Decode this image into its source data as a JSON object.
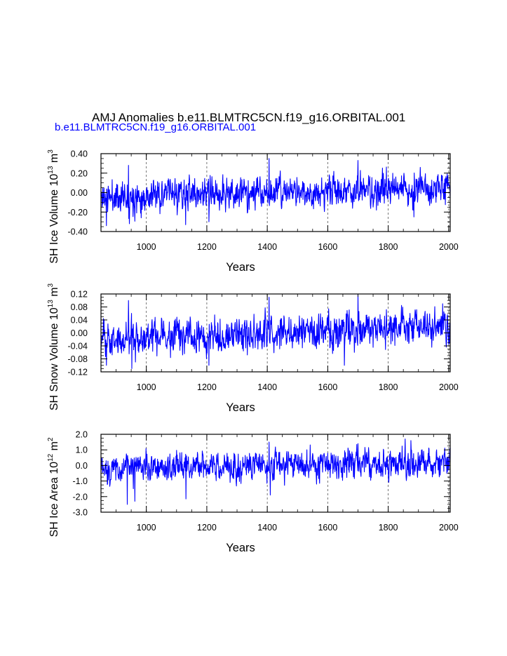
{
  "title": "AMJ Anomalies b.e11.BLMTRC5CN.f19_g16.ORBITAL.001",
  "subtitle": "b.e11.BLMTRC5CN.f19_g16.ORBITAL.001",
  "colors": {
    "series": "#0000ff",
    "text": "#000000",
    "subtitle": "#0000ff",
    "gridline": "#555555"
  },
  "chart_data": [
    {
      "type": "line",
      "name": "sh-ice-volume",
      "ylabel": {
        "prefix": "SH Ice Volume 10",
        "exp": "13",
        "unit": " m",
        "unit_exp": "3"
      },
      "xlabel": "Years",
      "xlim": [
        850,
        2005
      ],
      "ylim": [
        -0.4,
        0.4
      ],
      "xticks": [
        1000,
        1200,
        1400,
        1600,
        1800,
        2000
      ],
      "xtick_labels": [
        "1000",
        "1200",
        "1400",
        "1600",
        "1800",
        "2000"
      ],
      "yticks": [
        -0.4,
        -0.2,
        0.0,
        0.2,
        0.4
      ],
      "ytick_labels": [
        "-0.40",
        "-0.20",
        "0.00",
        "0.20",
        "0.40"
      ],
      "yminor": 0.05,
      "xminor": 50,
      "grid_x": [
        1000,
        1200,
        1400,
        1600,
        1800,
        2000
      ],
      "series": [
        {
          "name": "b.e11.BLMTRC5CN.f19_g16.ORBITAL.001",
          "x_start": 850,
          "x_step": 1,
          "count": 1156,
          "mean_trend": [
            [
              850,
              -0.05
            ],
            [
              1000,
              -0.03
            ],
            [
              1100,
              -0.01
            ],
            [
              1200,
              -0.02
            ],
            [
              1400,
              0.0
            ],
            [
              1600,
              0.01
            ],
            [
              1800,
              0.02
            ],
            [
              2005,
              0.05
            ]
          ],
          "noise_sd": 0.085,
          "seed": 11,
          "peaks": [
            [
              941,
              0.28
            ],
            [
              1406,
              0.35
            ],
            [
              1700,
              0.33
            ],
            [
              868,
              -0.34
            ],
            [
              944,
              -0.32
            ],
            [
              1130,
              -0.33
            ],
            [
              1207,
              -0.3
            ],
            [
              1885,
              -0.25
            ]
          ]
        }
      ]
    },
    {
      "type": "line",
      "name": "sh-snow-volume",
      "ylabel": {
        "prefix": "SH Snow Volume 10",
        "exp": "13",
        "unit": " m",
        "unit_exp": "3"
      },
      "xlabel": "Years",
      "xlim": [
        850,
        2005
      ],
      "ylim": [
        -0.12,
        0.12
      ],
      "xticks": [
        1000,
        1200,
        1400,
        1600,
        1800,
        2000
      ],
      "xtick_labels": [
        "1000",
        "1200",
        "1400",
        "1600",
        "1800",
        "2000"
      ],
      "yticks": [
        -0.12,
        -0.08,
        -0.04,
        0.0,
        0.04,
        0.08,
        0.12
      ],
      "ytick_labels": [
        "-0.12",
        "-0.08",
        "-0.04",
        "0.00",
        "0.04",
        "0.08",
        "0.12"
      ],
      "yminor": 0.01,
      "xminor": 50,
      "grid_x": [
        1000,
        1200,
        1400,
        1600,
        1800,
        2000
      ],
      "series": [
        {
          "name": "b.e11.BLMTRC5CN.f19_g16.ORBITAL.001",
          "x_start": 850,
          "x_step": 1,
          "count": 1156,
          "mean_trend": [
            [
              850,
              -0.02
            ],
            [
              1000,
              -0.015
            ],
            [
              1200,
              -0.005
            ],
            [
              1400,
              0.0
            ],
            [
              1600,
              0.005
            ],
            [
              1800,
              0.01
            ],
            [
              2005,
              0.02
            ]
          ],
          "noise_sd": 0.028,
          "seed": 23,
          "peaks": [
            [
              941,
              0.1
            ],
            [
              1406,
              0.11
            ],
            [
              1700,
              0.12
            ],
            [
              1980,
              0.09
            ],
            [
              952,
              -0.11
            ],
            [
              868,
              -0.1
            ],
            [
              1207,
              -0.1
            ],
            [
              1655,
              -0.1
            ]
          ]
        }
      ]
    },
    {
      "type": "line",
      "name": "sh-ice-area",
      "ylabel": {
        "prefix": "SH Ice Area 10",
        "exp": "12",
        "unit": " m",
        "unit_exp": "2"
      },
      "xlabel": "Years",
      "xlim": [
        850,
        2005
      ],
      "ylim": [
        -3.0,
        2.0
      ],
      "xticks": [
        1000,
        1200,
        1400,
        1600,
        1800,
        2000
      ],
      "xtick_labels": [
        "1000",
        "1200",
        "1400",
        "1600",
        "1800",
        "2000"
      ],
      "yticks": [
        -3.0,
        -2.0,
        -1.0,
        0.0,
        1.0,
        2.0
      ],
      "ytick_labels": [
        "-3.0",
        "-2.0",
        "-1.0",
        "0.0",
        "1.0",
        "2.0"
      ],
      "yminor": 0.25,
      "xminor": 50,
      "grid_x": [
        1000,
        1200,
        1400,
        1600,
        1800,
        2000
      ],
      "series": [
        {
          "name": "b.e11.BLMTRC5CN.f19_g16.ORBITAL.001",
          "x_start": 850,
          "x_step": 1,
          "count": 1156,
          "mean_trend": [
            [
              850,
              -0.25
            ],
            [
              1000,
              -0.15
            ],
            [
              1200,
              -0.05
            ],
            [
              1400,
              0.05
            ],
            [
              1600,
              0.05
            ],
            [
              1800,
              0.1
            ],
            [
              2005,
              0.2
            ]
          ],
          "noise_sd": 0.48,
          "seed": 37,
          "peaks": [
            [
              1856,
              1.7
            ],
            [
              1875,
              1.6
            ],
            [
              1406,
              1.5
            ],
            [
              1700,
              1.4
            ],
            [
              937,
              -2.5
            ],
            [
              962,
              -2.3
            ],
            [
              1131,
              -2.15
            ],
            [
              1410,
              -1.9
            ]
          ]
        }
      ]
    }
  ]
}
